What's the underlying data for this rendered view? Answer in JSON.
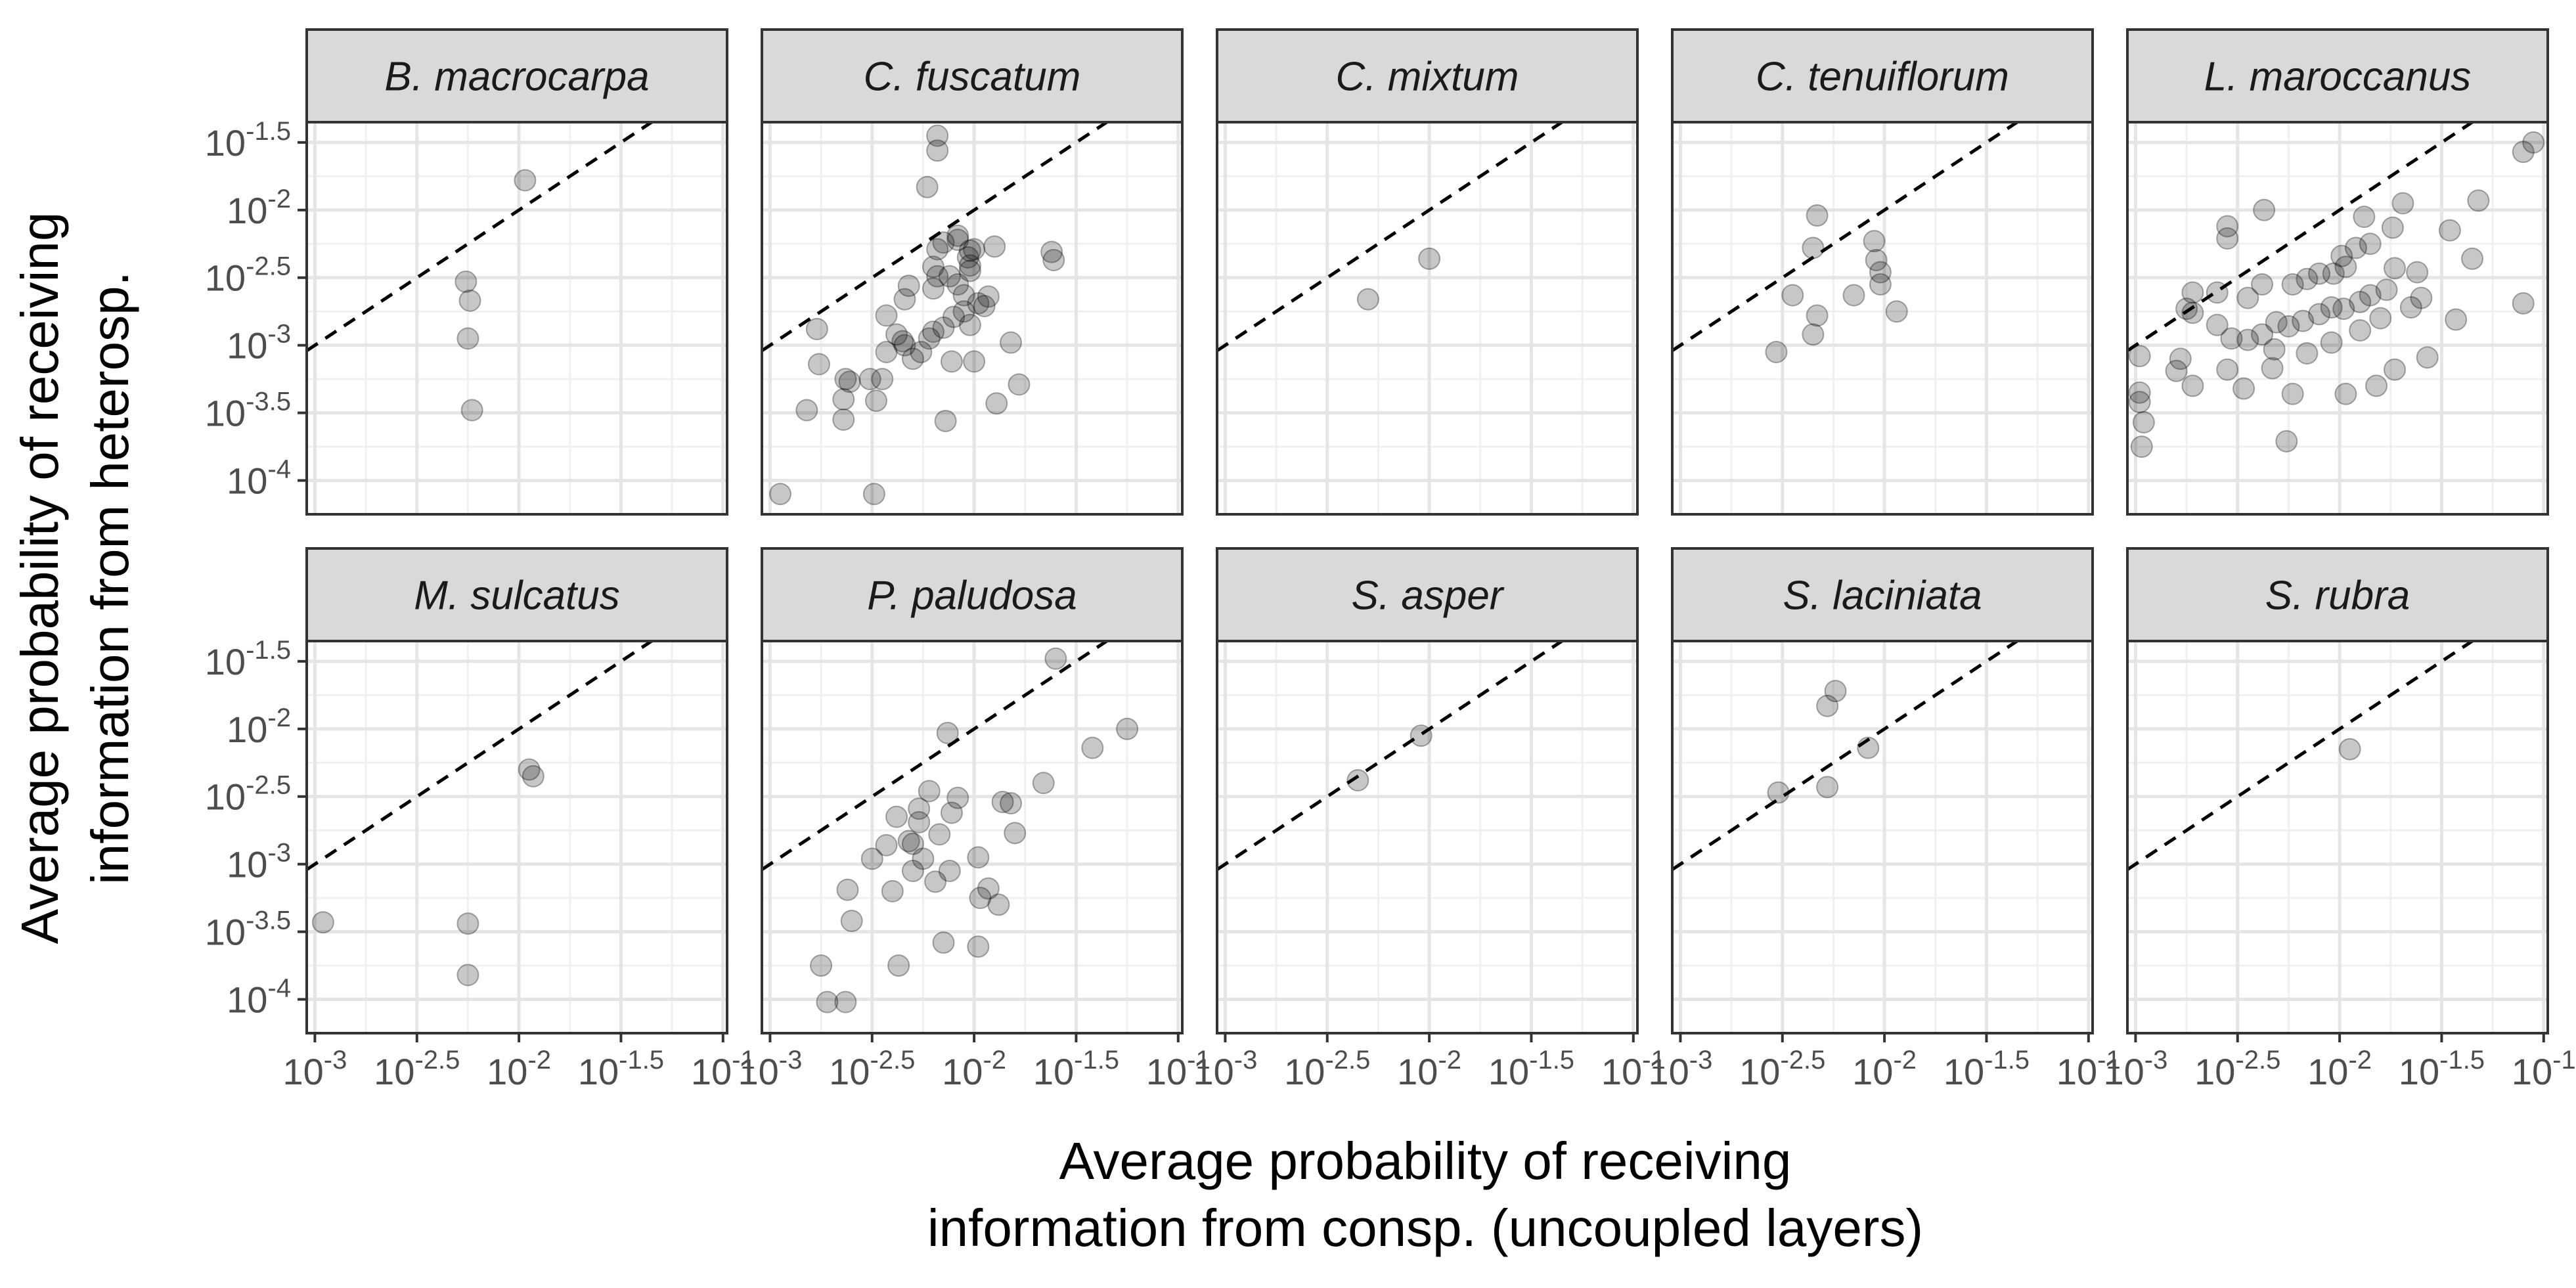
{
  "chart_data": {
    "type": "scatter",
    "facet_layout": "2 rows x 5 columns, shared axes",
    "xlabel": [
      "Average probability of receiving",
      "information from consp. (uncoupled layers)"
    ],
    "ylabel": [
      "Average probability of receiving",
      "information from heterosp."
    ],
    "x_scale": "log10",
    "y_scale": "log10",
    "x_ticks": [
      {
        "value": -3,
        "base": "10",
        "exp": "-3"
      },
      {
        "value": -2.5,
        "base": "10",
        "exp": "-2.5"
      },
      {
        "value": -2,
        "base": "10",
        "exp": "-2"
      },
      {
        "value": -1.5,
        "base": "10",
        "exp": "-1.5"
      },
      {
        "value": -1,
        "base": "10",
        "exp": "-1"
      }
    ],
    "y_ticks": [
      {
        "value": -4,
        "base": "10",
        "exp": "-4"
      },
      {
        "value": -3.5,
        "base": "10",
        "exp": "-3.5"
      },
      {
        "value": -3,
        "base": "10",
        "exp": "-3"
      },
      {
        "value": -2.5,
        "base": "10",
        "exp": "-2.5"
      },
      {
        "value": -2,
        "base": "10",
        "exp": "-2"
      },
      {
        "value": -1.5,
        "base": "10",
        "exp": "-1.5"
      }
    ],
    "xlim_log10": [
      -3.04,
      -0.98
    ],
    "ylim_log10": [
      -4.25,
      -1.35
    ],
    "reference_line": "y = x (dashed)",
    "grid": true,
    "point_style": {
      "color": "#000000",
      "opacity": 0.22
    },
    "facets": [
      {
        "title": "B. macrocarpa",
        "points": [
          [
            -1.97,
            -1.78
          ],
          [
            -2.26,
            -2.53
          ],
          [
            -2.24,
            -2.67
          ],
          [
            -2.25,
            -2.95
          ],
          [
            -2.23,
            -3.48
          ]
        ]
      },
      {
        "title": "C. fuscatum",
        "points": [
          [
            -2.18,
            -1.45
          ],
          [
            -2.18,
            -1.56
          ],
          [
            -2.23,
            -1.83
          ],
          [
            -2.08,
            -2.22
          ],
          [
            -2.0,
            -2.29
          ],
          [
            -1.9,
            -2.27
          ],
          [
            -1.62,
            -2.31
          ],
          [
            -1.61,
            -2.37
          ],
          [
            -2.08,
            -2.19
          ],
          [
            -2.15,
            -2.24
          ],
          [
            -2.02,
            -2.3
          ],
          [
            -2.18,
            -2.29
          ],
          [
            -2.2,
            -2.42
          ],
          [
            -2.2,
            -2.58
          ],
          [
            -2.03,
            -2.35
          ],
          [
            -2.02,
            -2.41
          ],
          [
            -2.02,
            -2.45
          ],
          [
            -2.05,
            -2.63
          ],
          [
            -2.08,
            -2.55
          ],
          [
            -2.12,
            -2.49
          ],
          [
            -2.18,
            -2.49
          ],
          [
            -2.32,
            -2.56
          ],
          [
            -1.93,
            -2.64
          ],
          [
            -1.95,
            -2.71
          ],
          [
            -2.05,
            -2.75
          ],
          [
            -2.1,
            -2.79
          ],
          [
            -2.34,
            -2.66
          ],
          [
            -2.43,
            -2.78
          ],
          [
            -2.38,
            -2.92
          ],
          [
            -2.2,
            -2.9
          ],
          [
            -2.15,
            -2.87
          ],
          [
            -2.02,
            -2.85
          ],
          [
            -1.98,
            -2.69
          ],
          [
            -2.22,
            -2.95
          ],
          [
            -2.26,
            -3.05
          ],
          [
            -2.35,
            -2.97
          ],
          [
            -2.43,
            -3.05
          ],
          [
            -2.45,
            -3.25
          ],
          [
            -2.3,
            -3.1
          ],
          [
            -2.51,
            -3.25
          ],
          [
            -2.76,
            -3.14
          ],
          [
            -2.61,
            -3.27
          ],
          [
            -2.63,
            -3.25
          ],
          [
            -2.64,
            -3.4
          ],
          [
            -2.64,
            -3.55
          ],
          [
            -2.82,
            -3.48
          ],
          [
            -2.34,
            -3.0
          ],
          [
            -2.11,
            -3.12
          ],
          [
            -2.0,
            -3.12
          ],
          [
            -1.89,
            -3.43
          ],
          [
            -1.78,
            -3.29
          ],
          [
            -2.14,
            -3.56
          ],
          [
            -2.48,
            -3.41
          ],
          [
            -2.95,
            -4.1
          ],
          [
            -2.49,
            -4.1
          ],
          [
            -2.77,
            -2.88
          ],
          [
            -1.82,
            -2.98
          ]
        ]
      },
      {
        "title": "C. mixtum",
        "points": [
          [
            -2.0,
            -2.36
          ],
          [
            -2.3,
            -2.66
          ]
        ]
      },
      {
        "title": "C. tenuiflorum",
        "points": [
          [
            -2.33,
            -2.04
          ],
          [
            -2.05,
            -2.23
          ],
          [
            -2.04,
            -2.37
          ],
          [
            -2.02,
            -2.46
          ],
          [
            -2.02,
            -2.55
          ],
          [
            -2.35,
            -2.28
          ],
          [
            -2.15,
            -2.63
          ],
          [
            -2.45,
            -2.63
          ],
          [
            -2.33,
            -2.78
          ],
          [
            -1.94,
            -2.75
          ],
          [
            -2.35,
            -2.92
          ],
          [
            -2.53,
            -3.05
          ]
        ]
      },
      {
        "title": "L. maroccanus",
        "points": [
          [
            -1.1,
            -1.57
          ],
          [
            -1.05,
            -1.5
          ],
          [
            -2.55,
            -2.12
          ],
          [
            -2.55,
            -2.21
          ],
          [
            -2.37,
            -2.0
          ],
          [
            -1.88,
            -2.05
          ],
          [
            -1.69,
            -1.95
          ],
          [
            -1.74,
            -2.13
          ],
          [
            -1.85,
            -2.25
          ],
          [
            -1.92,
            -2.28
          ],
          [
            -1.99,
            -2.34
          ],
          [
            -1.62,
            -2.46
          ],
          [
            -1.73,
            -2.43
          ],
          [
            -1.97,
            -2.42
          ],
          [
            -2.03,
            -2.47
          ],
          [
            -2.1,
            -2.47
          ],
          [
            -2.16,
            -2.51
          ],
          [
            -2.23,
            -2.55
          ],
          [
            -2.38,
            -2.55
          ],
          [
            -2.45,
            -2.65
          ],
          [
            -2.6,
            -2.61
          ],
          [
            -2.72,
            -2.61
          ],
          [
            -1.77,
            -2.59
          ],
          [
            -1.85,
            -2.63
          ],
          [
            -1.9,
            -2.68
          ],
          [
            -1.98,
            -2.73
          ],
          [
            -2.04,
            -2.72
          ],
          [
            -2.1,
            -2.77
          ],
          [
            -2.18,
            -2.82
          ],
          [
            -2.25,
            -2.86
          ],
          [
            -2.31,
            -2.83
          ],
          [
            -2.38,
            -2.92
          ],
          [
            -2.45,
            -2.96
          ],
          [
            -2.53,
            -2.95
          ],
          [
            -2.6,
            -2.85
          ],
          [
            -2.72,
            -2.76
          ],
          [
            -2.75,
            -2.73
          ],
          [
            -2.78,
            -3.1
          ],
          [
            -2.72,
            -3.3
          ],
          [
            -2.8,
            -3.19
          ],
          [
            -2.98,
            -3.08
          ],
          [
            -2.98,
            -3.35
          ],
          [
            -2.98,
            -3.42
          ],
          [
            -2.96,
            -3.57
          ],
          [
            -2.97,
            -3.75
          ],
          [
            -2.32,
            -3.03
          ],
          [
            -2.16,
            -3.06
          ],
          [
            -2.04,
            -2.98
          ],
          [
            -1.9,
            -2.89
          ],
          [
            -1.8,
            -2.8
          ],
          [
            -1.65,
            -2.72
          ],
          [
            -1.6,
            -2.65
          ],
          [
            -1.35,
            -2.36
          ],
          [
            -1.46,
            -2.15
          ],
          [
            -1.32,
            -1.93
          ],
          [
            -1.1,
            -2.69
          ],
          [
            -1.43,
            -2.81
          ],
          [
            -1.57,
            -3.09
          ],
          [
            -1.73,
            -3.18
          ],
          [
            -1.82,
            -3.3
          ],
          [
            -1.97,
            -3.36
          ],
          [
            -2.23,
            -3.36
          ],
          [
            -2.26,
            -3.71
          ],
          [
            -2.47,
            -3.32
          ],
          [
            -2.55,
            -3.18
          ],
          [
            -2.33,
            -3.17
          ]
        ]
      },
      {
        "title": "M. sulcatus",
        "points": [
          [
            -1.95,
            -2.3
          ],
          [
            -1.93,
            -2.35
          ],
          [
            -2.25,
            -3.44
          ],
          [
            -2.25,
            -3.82
          ],
          [
            -2.96,
            -3.43
          ]
        ]
      },
      {
        "title": "P. paludosa",
        "points": [
          [
            -1.6,
            -1.48
          ],
          [
            -1.42,
            -2.14
          ],
          [
            -2.13,
            -2.03
          ],
          [
            -1.66,
            -2.4
          ],
          [
            -1.25,
            -2.0
          ],
          [
            -2.22,
            -2.46
          ],
          [
            -2.27,
            -2.59
          ],
          [
            -2.27,
            -2.69
          ],
          [
            -2.17,
            -2.78
          ],
          [
            -2.11,
            -2.62
          ],
          [
            -2.08,
            -2.51
          ],
          [
            -1.86,
            -2.54
          ],
          [
            -1.82,
            -2.55
          ],
          [
            -1.98,
            -2.95
          ],
          [
            -2.25,
            -2.96
          ],
          [
            -2.3,
            -2.85
          ],
          [
            -2.38,
            -2.65
          ],
          [
            -2.32,
            -2.83
          ],
          [
            -2.3,
            -3.05
          ],
          [
            -2.12,
            -3.05
          ],
          [
            -2.19,
            -3.13
          ],
          [
            -1.97,
            -3.25
          ],
          [
            -1.88,
            -3.3
          ],
          [
            -2.43,
            -2.86
          ],
          [
            -2.5,
            -2.96
          ],
          [
            -2.62,
            -3.19
          ],
          [
            -2.4,
            -3.2
          ],
          [
            -2.15,
            -3.58
          ],
          [
            -2.6,
            -3.42
          ],
          [
            -1.98,
            -3.61
          ],
          [
            -2.37,
            -3.75
          ],
          [
            -2.75,
            -3.75
          ],
          [
            -2.63,
            -4.02
          ],
          [
            -2.72,
            -4.02
          ],
          [
            -1.8,
            -2.77
          ],
          [
            -1.93,
            -3.18
          ]
        ]
      },
      {
        "title": "S. asper",
        "points": [
          [
            -2.35,
            -2.38
          ],
          [
            -2.04,
            -2.05
          ]
        ]
      },
      {
        "title": "S. laciniata",
        "points": [
          [
            -2.24,
            -1.72
          ],
          [
            -2.28,
            -1.83
          ],
          [
            -2.08,
            -2.14
          ],
          [
            -2.52,
            -2.47
          ],
          [
            -2.28,
            -2.43
          ]
        ]
      },
      {
        "title": "S. rubra",
        "points": [
          [
            -1.95,
            -2.15
          ]
        ]
      }
    ]
  }
}
